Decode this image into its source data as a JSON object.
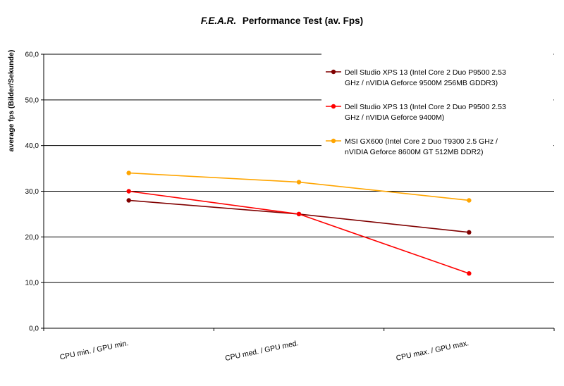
{
  "chart_data": {
    "type": "line",
    "title_italic": "F.E.A.R.",
    "title_rest": "Performance Test (av. Fps)",
    "xlabel": "",
    "ylabel": "average fps (Bilder/Sekunde)",
    "categories": [
      "CPU min. / GPU min.",
      "CPU med. / GPU med.",
      "CPU max. / GPU max."
    ],
    "ylim": [
      0,
      60
    ],
    "yticks": [
      "0,0",
      "10,0",
      "20,0",
      "30,0",
      "40,0",
      "50,0",
      "60,0"
    ],
    "grid": true,
    "legend_position": "top-right",
    "series": [
      {
        "name_lines": [
          "Dell Studio XPS 13 (Intel Core 2 Duo P9500 2.53",
          "GHz / nVIDIA Geforce 9500M 256MB GDDR3)"
        ],
        "values": [
          28,
          25,
          21
        ],
        "color": "#800000"
      },
      {
        "name_lines": [
          "Dell Studio XPS 13 (Intel Core 2 Duo P9500 2.53",
          "GHz / nVIDIA Geforce 9400M)"
        ],
        "values": [
          30,
          25,
          12
        ],
        "color": "#ff0000"
      },
      {
        "name_lines": [
          "MSI GX600 (Intel Core 2 Duo T9300 2.5 GHz /",
          "nVIDIA Geforce 8600M GT 512MB DDR2)"
        ],
        "values": [
          34,
          32,
          28
        ],
        "color": "#ffa500"
      }
    ]
  }
}
